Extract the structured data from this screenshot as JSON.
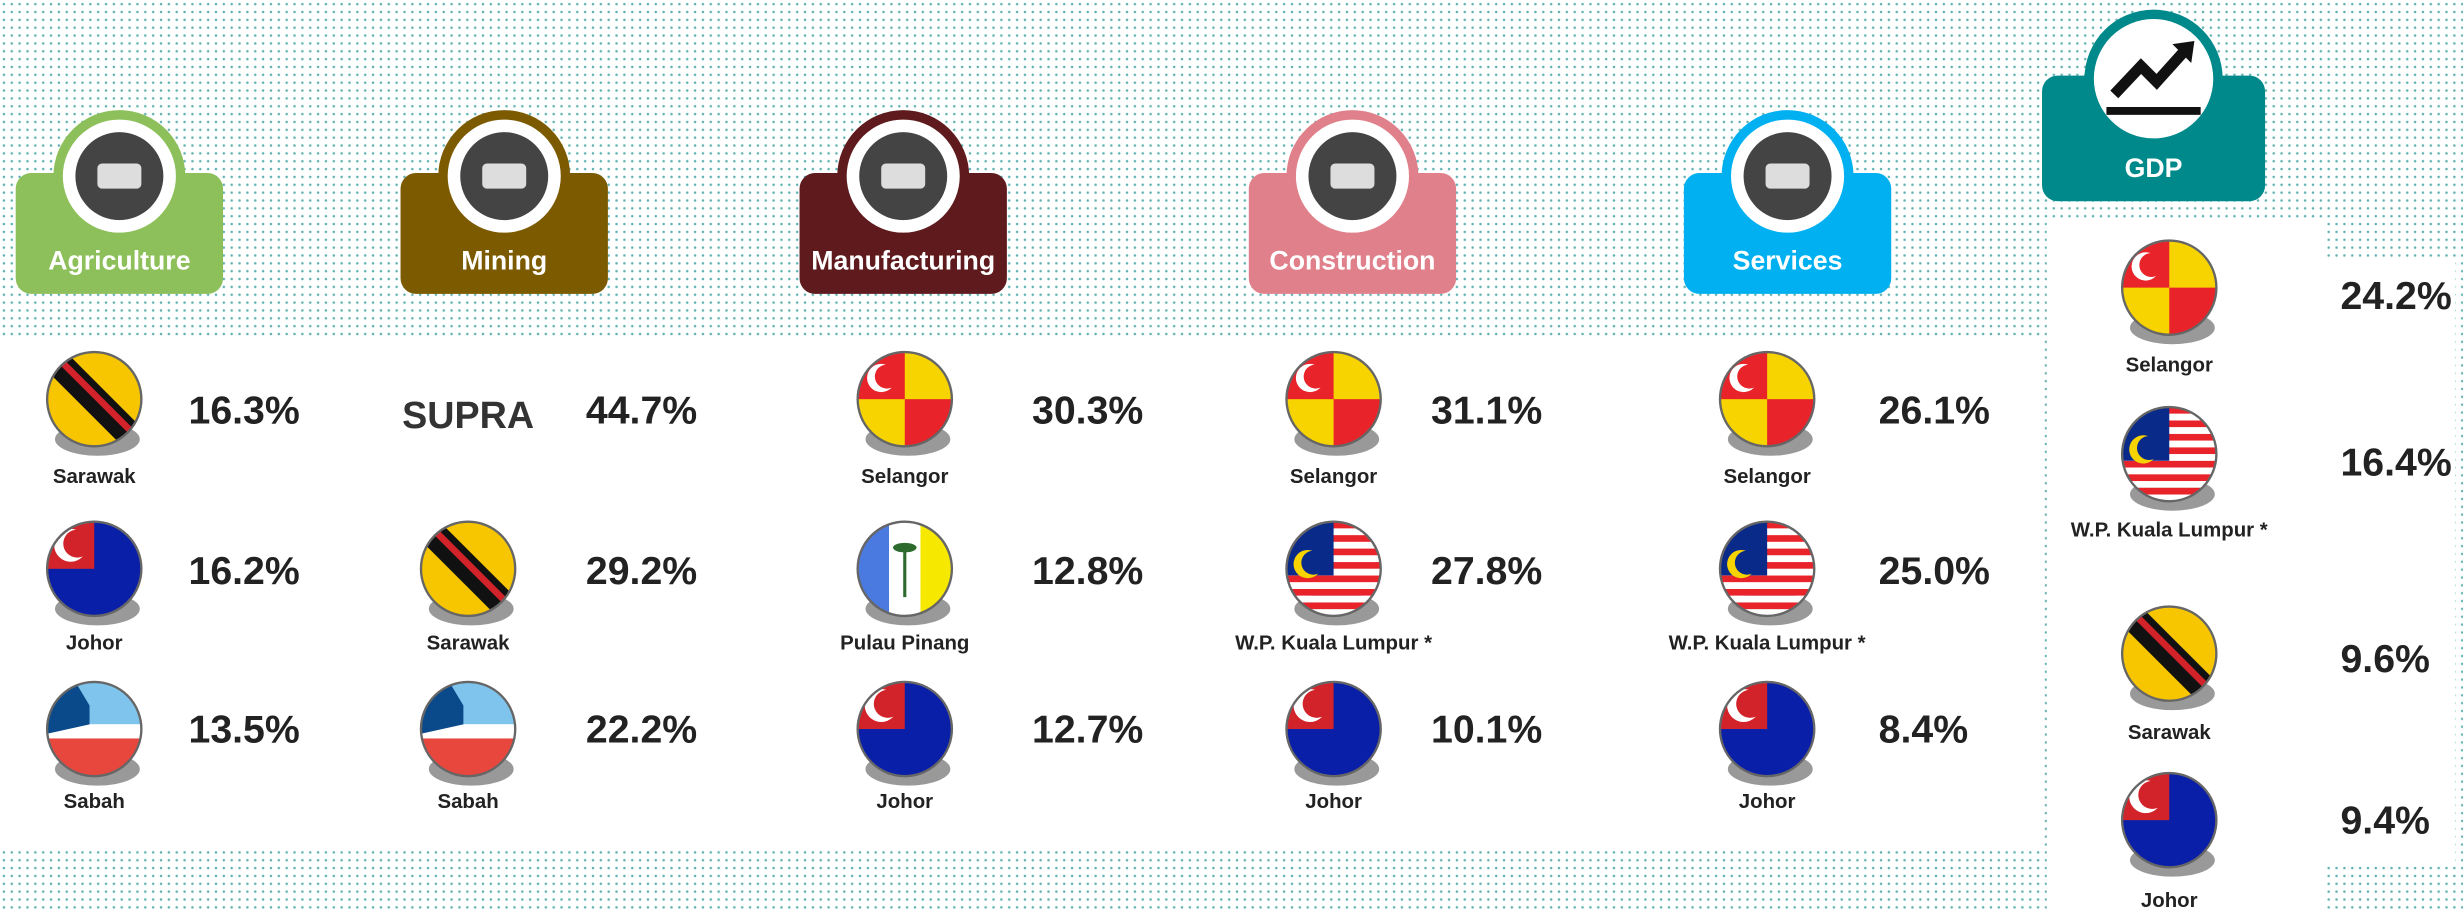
{
  "sectors": [
    {
      "name": "Agriculture",
      "items": [
        {
          "state": "Sarawak",
          "share": "16.3%"
        },
        {
          "state": "Johor",
          "share": "16.2%"
        },
        {
          "state": "Sabah",
          "share": "13.5%"
        }
      ]
    },
    {
      "name": "Mining",
      "items": [
        {
          "logo": "SUPRA",
          "share": "44.7%"
        },
        {
          "state": "Sarawak",
          "share": "29.2%"
        },
        {
          "state": "Sabah",
          "share": "22.2%"
        }
      ]
    },
    {
      "name": "Manufacturing",
      "items": [
        {
          "state": "Selangor",
          "share": "30.3%"
        },
        {
          "state": "Pulau Pinang",
          "share": "12.8%"
        },
        {
          "state": "Johor",
          "share": "12.7%"
        }
      ]
    },
    {
      "name": "Construction",
      "items": [
        {
          "state": "Selangor",
          "share": "31.1%"
        },
        {
          "state": "W.P. Kuala Lumpur *",
          "share": "27.8%"
        },
        {
          "state": "Johor",
          "share": "10.1%"
        }
      ]
    },
    {
      "name": "Services",
      "items": [
        {
          "state": "Selangor",
          "share": "26.1%"
        },
        {
          "state": "W.P. Kuala Lumpur *",
          "share": "25.0%"
        },
        {
          "state": "Johor",
          "share": "8.4%"
        }
      ]
    }
  ],
  "gdp": {
    "name": "GDP",
    "items": [
      {
        "state": "Selangor",
        "share": "24.2%"
      },
      {
        "state": "W.P. Kuala Lumpur *",
        "share": "16.4%"
      },
      {
        "state": "Sarawak",
        "share": "9.6%"
      },
      {
        "state": "Johor",
        "share": "9.4%"
      }
    ]
  }
}
